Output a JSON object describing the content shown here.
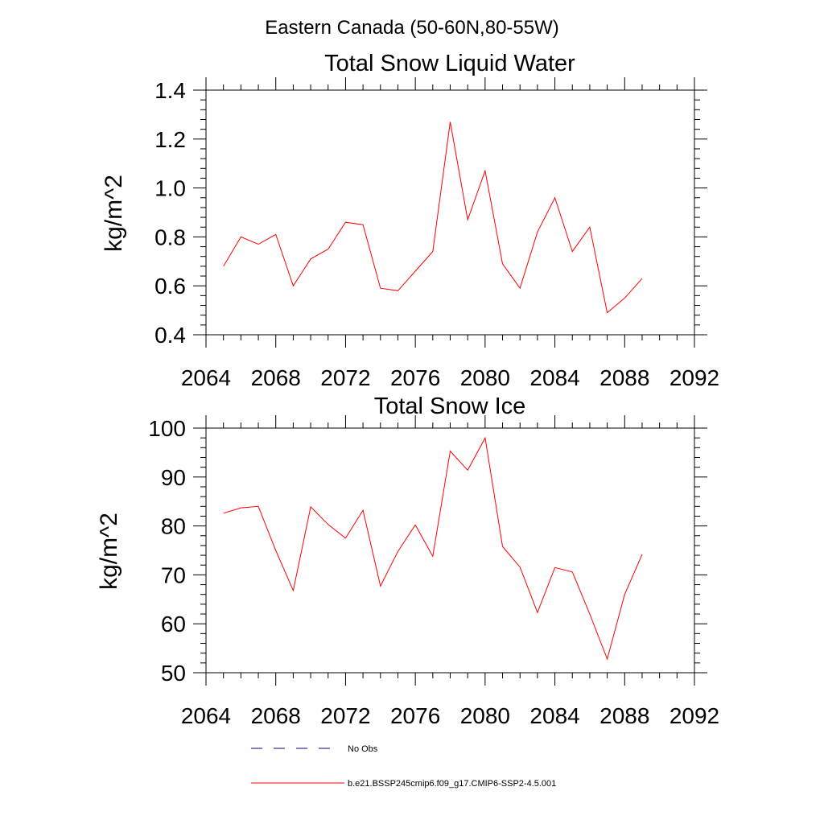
{
  "figure": {
    "title": "Eastern Canada (50-60N,80-55W)",
    "legend": [
      {
        "label": "No Obs",
        "color": "#000080",
        "style": "dashed"
      },
      {
        "label": "b.e21.BSSP245cmip6.f09_g17.CMIP6-SSP2-4.5.001",
        "color": "#ff0000",
        "style": "solid"
      }
    ]
  },
  "chart_data": [
    {
      "type": "line",
      "title": "Total Snow Liquid Water",
      "xlabel": "",
      "ylabel": "kg/m^2",
      "xlim": [
        2064,
        2092
      ],
      "ylim": [
        0.4,
        1.4
      ],
      "xticks": [
        2064,
        2068,
        2072,
        2076,
        2080,
        2084,
        2088,
        2092
      ],
      "xtick_labels": [
        "2064",
        "2068",
        "2072",
        "2076",
        "2080",
        "2084",
        "2088",
        "2092"
      ],
      "yticks": [
        0.4,
        0.6,
        0.8,
        1.0,
        1.2,
        1.4
      ],
      "ytick_labels": [
        "0.4",
        "0.6",
        "0.8",
        "1.0",
        "1.2",
        "1.4"
      ],
      "grid": false,
      "series": [
        {
          "name": "b.e21.BSSP245cmip6.f09_g17.CMIP6-SSP2-4.5.001",
          "color": "#ff0000",
          "x": [
            2065,
            2066,
            2067,
            2068,
            2069,
            2070,
            2071,
            2072,
            2073,
            2074,
            2075,
            2076,
            2077,
            2078,
            2079,
            2080,
            2081,
            2082,
            2083,
            2084,
            2085,
            2086,
            2087,
            2088,
            2089
          ],
          "y": [
            0.68,
            0.8,
            0.77,
            0.81,
            0.6,
            0.71,
            0.75,
            0.86,
            0.85,
            0.59,
            0.58,
            0.66,
            0.74,
            1.27,
            0.87,
            1.07,
            0.69,
            0.59,
            0.82,
            0.96,
            0.74,
            0.84,
            0.49,
            0.55,
            0.63
          ]
        }
      ]
    },
    {
      "type": "line",
      "title": "Total Snow Ice",
      "xlabel": "",
      "ylabel": "kg/m^2",
      "xlim": [
        2064,
        2092
      ],
      "ylim": [
        50,
        100
      ],
      "xticks": [
        2064,
        2068,
        2072,
        2076,
        2080,
        2084,
        2088,
        2092
      ],
      "xtick_labels": [
        "2064",
        "2068",
        "2072",
        "2076",
        "2080",
        "2084",
        "2088",
        "2092"
      ],
      "yticks": [
        50,
        60,
        70,
        80,
        90,
        100
      ],
      "ytick_labels": [
        "50",
        "60",
        "70",
        "80",
        "90",
        "100"
      ],
      "grid": false,
      "series": [
        {
          "name": "b.e21.BSSP245cmip6.f09_g17.CMIP6-SSP2-4.5.001",
          "color": "#ff0000",
          "x": [
            2065,
            2066,
            2067,
            2068,
            2069,
            2070,
            2071,
            2072,
            2073,
            2074,
            2075,
            2076,
            2077,
            2078,
            2079,
            2080,
            2081,
            2082,
            2083,
            2084,
            2085,
            2086,
            2087,
            2088,
            2089
          ],
          "y": [
            82.6,
            83.7,
            84.0,
            75.0,
            66.8,
            83.9,
            80.3,
            77.5,
            83.2,
            67.7,
            74.8,
            80.2,
            73.8,
            95.3,
            91.4,
            98.0,
            75.8,
            71.6,
            62.3,
            71.5,
            70.6,
            62.0,
            52.8,
            66.0,
            74.2
          ]
        }
      ]
    }
  ]
}
